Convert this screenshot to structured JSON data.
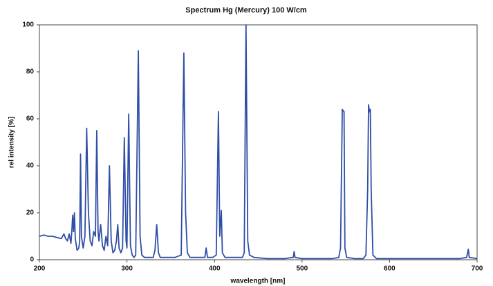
{
  "chart_data": {
    "type": "line",
    "title": "Spectrum Hg (Mercury) 100 W/cm",
    "xlabel": "wavelength [nm]",
    "ylabel": "rel intensity [%]",
    "color": "#2f4ea6",
    "xlim": [
      200,
      700
    ],
    "xticks": [
      200,
      300,
      400,
      500,
      600,
      700
    ],
    "ylim": [
      0,
      100
    ],
    "yticks": [
      0,
      20,
      40,
      60,
      80,
      100
    ],
    "grid": false,
    "x": [
      200,
      205,
      210,
      215,
      220,
      225,
      228,
      230,
      232,
      234,
      236,
      237,
      238,
      239,
      240,
      241,
      243,
      245,
      246,
      247,
      248,
      250,
      252,
      254,
      256,
      258,
      260,
      262,
      264,
      265.5,
      267,
      268,
      270,
      272,
      274,
      276,
      278,
      280,
      282,
      284,
      286,
      288,
      289.5,
      291,
      293,
      295,
      297,
      299,
      300,
      302,
      304,
      306,
      308,
      310,
      313,
      315,
      317,
      320,
      325,
      330,
      332,
      334,
      336,
      338,
      345,
      355,
      362,
      365,
      367,
      369,
      372,
      378,
      385,
      389,
      390.5,
      392,
      398,
      402,
      404.5,
      406,
      407.8,
      409,
      412,
      425,
      432,
      434,
      436,
      438,
      440,
      445,
      460,
      480,
      490,
      491,
      492,
      500,
      520,
      535,
      542,
      544,
      546,
      548,
      549,
      551,
      560,
      570,
      573,
      575,
      576,
      577,
      578,
      579,
      581,
      585,
      620,
      650,
      680,
      688,
      690,
      691,
      700
    ],
    "values": [
      10,
      10.5,
      10,
      10,
      9.5,
      9,
      11,
      9,
      8,
      11,
      7,
      12,
      19,
      12,
      20,
      9,
      4,
      5,
      8,
      45,
      10,
      5,
      10,
      56,
      20,
      8,
      6,
      12,
      10,
      55,
      12,
      8,
      15,
      6,
      4,
      10,
      6,
      40,
      8,
      3,
      4,
      8,
      15,
      5,
      3,
      5,
      52,
      8,
      5,
      62,
      6,
      2,
      1,
      2,
      89,
      10,
      2,
      1,
      1,
      1,
      4,
      15,
      3,
      1,
      1,
      1,
      2,
      88,
      20,
      3,
      1,
      1,
      1,
      1,
      5,
      1,
      1,
      2,
      63,
      10,
      21,
      3,
      1,
      1,
      1,
      3,
      100,
      8,
      2,
      1,
      0.5,
      0.5,
      1,
      3.5,
      1,
      0.5,
      0.5,
      0.5,
      1,
      5,
      64,
      63,
      5,
      1,
      0.5,
      0.5,
      2,
      30,
      66,
      63,
      64,
      30,
      2,
      0.5,
      0.5,
      0.5,
      0.5,
      1,
      4.5,
      1,
      0.5
    ]
  }
}
